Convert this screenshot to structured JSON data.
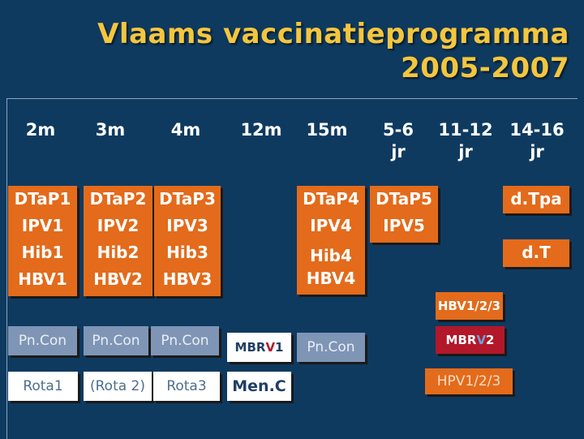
{
  "title": {
    "line1": "Vlaams vaccinatieprogramma",
    "line2": "2005-2007"
  },
  "ages": {
    "m2": "2m",
    "m3": "3m",
    "m4": "4m",
    "m12": "12m",
    "m15": "15m",
    "y5_6_top": "5-6",
    "y5_6_bottom": "jr",
    "y11_12_top": "11-12",
    "y11_12_bottom": "jr",
    "y14_16_top": "14-16",
    "y14_16_bottom": "jr"
  },
  "primary": {
    "m2": [
      "DTaP1",
      "IPV1",
      "Hib1",
      "HBV1"
    ],
    "m3": [
      "DTaP2",
      "IPV2",
      "Hib2",
      "HBV2"
    ],
    "m4": [
      "DTaP3",
      "IPV3",
      "Hib3",
      "HBV3"
    ],
    "m15": [
      "DTaP4",
      "IPV4",
      "Hib4",
      "HBV4"
    ],
    "y5_6": [
      "DTaP5",
      "IPV5"
    ]
  },
  "adolescent": {
    "dtpa": "d.Tpa",
    "dt": "d.T",
    "hbv": "HBV1/2/3",
    "mbr_v2_prefix": "MBR",
    "mbr_v2_v": "V",
    "mbr_v2_suffix": "2",
    "hpv": "HPV1/2/3"
  },
  "pncon": {
    "m2": "Pn.Con",
    "m3": "Pn.Con",
    "m4": "Pn.Con",
    "m15": "Pn.Con"
  },
  "rota": {
    "m2": "Rota1",
    "m3": "(Rota 2)",
    "m4": "Rota3"
  },
  "mbr_v1": {
    "prefix": "MBR",
    "v": "V",
    "suffix": "1"
  },
  "menc": "Men.C",
  "colors": {
    "background": "#0f3a5f",
    "title": "#f4c63d",
    "vaccine_orange": "#e36b1b",
    "steel": "#7f95b5",
    "red": "#b3172a"
  }
}
